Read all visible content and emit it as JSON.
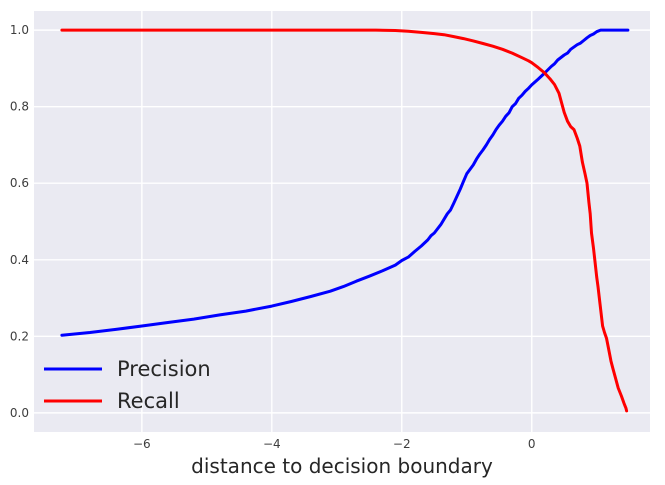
{
  "chart_data": {
    "type": "line",
    "title": "",
    "xlabel": "distance to decision boundary",
    "ylabel": "",
    "xlim": [
      -7.66,
      1.82
    ],
    "ylim": [
      -0.05,
      1.05
    ],
    "grid": true,
    "plot_background": "#eaeaf2",
    "grid_color": "#ffffff",
    "tick_color": "#3d3d3d",
    "label_color": "#262626",
    "xticks": [
      {
        "v": -6,
        "label": "−6"
      },
      {
        "v": -4,
        "label": "−4"
      },
      {
        "v": -2,
        "label": "−2"
      },
      {
        "v": 0,
        "label": "0"
      }
    ],
    "yticks": [
      {
        "v": 0.0,
        "label": "0.0"
      },
      {
        "v": 0.2,
        "label": "0.2"
      },
      {
        "v": 0.4,
        "label": "0.4"
      },
      {
        "v": 0.6,
        "label": "0.6"
      },
      {
        "v": 0.8,
        "label": "0.8"
      },
      {
        "v": 1.0,
        "label": "1.0"
      }
    ],
    "legend": {
      "position": "lower left",
      "frame": false
    },
    "series": [
      {
        "name": "Precision",
        "color": "#0000ff",
        "points": [
          [
            -7.23,
            0.203
          ],
          [
            -6.8,
            0.21
          ],
          [
            -6.4,
            0.218
          ],
          [
            -6.0,
            0.227
          ],
          [
            -5.6,
            0.236
          ],
          [
            -5.2,
            0.245
          ],
          [
            -4.8,
            0.256
          ],
          [
            -4.4,
            0.266
          ],
          [
            -4.0,
            0.279
          ],
          [
            -3.7,
            0.291
          ],
          [
            -3.4,
            0.304
          ],
          [
            -3.1,
            0.318
          ],
          [
            -2.9,
            0.33
          ],
          [
            -2.7,
            0.344
          ],
          [
            -2.5,
            0.357
          ],
          [
            -2.3,
            0.371
          ],
          [
            -2.1,
            0.386
          ],
          [
            -2.0,
            0.398
          ],
          [
            -1.9,
            0.407
          ],
          [
            -1.8,
            0.422
          ],
          [
            -1.7,
            0.436
          ],
          [
            -1.6,
            0.452
          ],
          [
            -1.55,
            0.463
          ],
          [
            -1.5,
            0.47
          ],
          [
            -1.4,
            0.492
          ],
          [
            -1.3,
            0.52
          ],
          [
            -1.25,
            0.53
          ],
          [
            -1.2,
            0.548
          ],
          [
            -1.1,
            0.585
          ],
          [
            -1.05,
            0.605
          ],
          [
            -1.0,
            0.625
          ],
          [
            -0.95,
            0.636
          ],
          [
            -0.9,
            0.648
          ],
          [
            -0.85,
            0.663
          ],
          [
            -0.8,
            0.676
          ],
          [
            -0.75,
            0.687
          ],
          [
            -0.7,
            0.7
          ],
          [
            -0.65,
            0.714
          ],
          [
            -0.6,
            0.726
          ],
          [
            -0.55,
            0.74
          ],
          [
            -0.5,
            0.752
          ],
          [
            -0.45,
            0.762
          ],
          [
            -0.4,
            0.775
          ],
          [
            -0.35,
            0.784
          ],
          [
            -0.3,
            0.8
          ],
          [
            -0.25,
            0.808
          ],
          [
            -0.2,
            0.822
          ],
          [
            -0.15,
            0.83
          ],
          [
            -0.1,
            0.84
          ],
          [
            -0.05,
            0.848
          ],
          [
            0.0,
            0.857
          ],
          [
            0.1,
            0.872
          ],
          [
            0.2,
            0.888
          ],
          [
            0.3,
            0.905
          ],
          [
            0.35,
            0.912
          ],
          [
            0.4,
            0.922
          ],
          [
            0.5,
            0.935
          ],
          [
            0.55,
            0.94
          ],
          [
            0.6,
            0.95
          ],
          [
            0.7,
            0.962
          ],
          [
            0.75,
            0.966
          ],
          [
            0.8,
            0.973
          ],
          [
            0.85,
            0.98
          ],
          [
            0.9,
            0.986
          ],
          [
            0.95,
            0.99
          ],
          [
            1.0,
            0.996
          ],
          [
            1.06,
            1.0
          ],
          [
            1.48,
            1.0
          ]
        ]
      },
      {
        "name": "Recall",
        "color": "#ff0000",
        "points": [
          [
            -7.23,
            1.0
          ],
          [
            -6.0,
            1.0
          ],
          [
            -5.0,
            1.0
          ],
          [
            -4.0,
            1.0
          ],
          [
            -3.0,
            1.0
          ],
          [
            -2.4,
            1.0
          ],
          [
            -2.1,
            0.999
          ],
          [
            -1.9,
            0.997
          ],
          [
            -1.7,
            0.994
          ],
          [
            -1.5,
            0.991
          ],
          [
            -1.35,
            0.988
          ],
          [
            -1.2,
            0.983
          ],
          [
            -1.05,
            0.978
          ],
          [
            -0.9,
            0.972
          ],
          [
            -0.75,
            0.965
          ],
          [
            -0.6,
            0.958
          ],
          [
            -0.45,
            0.95
          ],
          [
            -0.3,
            0.94
          ],
          [
            -0.15,
            0.928
          ],
          [
            -0.05,
            0.92
          ],
          [
            0.0,
            0.915
          ],
          [
            0.1,
            0.902
          ],
          [
            0.2,
            0.888
          ],
          [
            0.28,
            0.873
          ],
          [
            0.35,
            0.858
          ],
          [
            0.42,
            0.835
          ],
          [
            0.46,
            0.81
          ],
          [
            0.5,
            0.785
          ],
          [
            0.55,
            0.762
          ],
          [
            0.6,
            0.748
          ],
          [
            0.65,
            0.74
          ],
          [
            0.7,
            0.718
          ],
          [
            0.74,
            0.697
          ],
          [
            0.78,
            0.655
          ],
          [
            0.82,
            0.625
          ],
          [
            0.85,
            0.6
          ],
          [
            0.88,
            0.55
          ],
          [
            0.9,
            0.52
          ],
          [
            0.92,
            0.47
          ],
          [
            0.95,
            0.43
          ],
          [
            0.97,
            0.4
          ],
          [
            1.0,
            0.355
          ],
          [
            1.02,
            0.33
          ],
          [
            1.05,
            0.285
          ],
          [
            1.09,
            0.227
          ],
          [
            1.12,
            0.21
          ],
          [
            1.15,
            0.195
          ],
          [
            1.18,
            0.17
          ],
          [
            1.22,
            0.135
          ],
          [
            1.25,
            0.115
          ],
          [
            1.29,
            0.09
          ],
          [
            1.33,
            0.065
          ],
          [
            1.38,
            0.044
          ],
          [
            1.42,
            0.025
          ],
          [
            1.45,
            0.012
          ],
          [
            1.46,
            0.005
          ]
        ]
      }
    ]
  }
}
